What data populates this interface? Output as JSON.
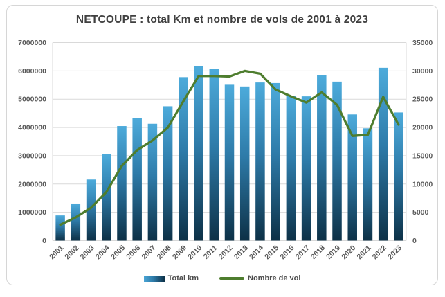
{
  "window": {
    "background": "#ffffff",
    "frame_border": "#d6d6d6"
  },
  "chart_data": {
    "type": "combo-bar-line",
    "title": "NETCOUPE : total Km et nombre de vols de 2001 à 2023",
    "categories": [
      "2001",
      "2002",
      "2003",
      "2004",
      "2005",
      "2006",
      "2007",
      "2008",
      "2009",
      "2010",
      "2011",
      "2012",
      "2013",
      "2014",
      "2015",
      "2016",
      "2017",
      "2018",
      "2019",
      "2020",
      "2021",
      "2022",
      "2023"
    ],
    "series": [
      {
        "name": "Total km",
        "type": "bar",
        "axis": "left",
        "values": [
          890000,
          1310000,
          2160000,
          3050000,
          4050000,
          4330000,
          4130000,
          4750000,
          5780000,
          6170000,
          6060000,
          5510000,
          5450000,
          5590000,
          5570000,
          5120000,
          5100000,
          5840000,
          5620000,
          4460000,
          3970000,
          6110000,
          4530000
        ]
      },
      {
        "name": "Nombre de vol",
        "type": "line",
        "axis": "right",
        "values": [
          2800,
          4100,
          5800,
          8600,
          13200,
          16000,
          17700,
          20000,
          24600,
          29100,
          29100,
          29000,
          30000,
          29500,
          26700,
          25500,
          24400,
          26200,
          24000,
          18500,
          18700,
          25400,
          20500
        ]
      }
    ],
    "left_axis": {
      "min": 0,
      "max": 7000000,
      "step": 1000000,
      "ticks": [
        "7000000",
        "6000000",
        "5000000",
        "4000000",
        "3000000",
        "2000000",
        "1000000",
        "0"
      ]
    },
    "right_axis": {
      "min": 0,
      "max": 35000,
      "step": 5000,
      "ticks": [
        "35000",
        "30000",
        "25000",
        "20000",
        "15000",
        "10000",
        "5000",
        "0"
      ]
    },
    "legend_position": "bottom",
    "grid": "horizontal",
    "colors": {
      "bar_top": "#4dabdb",
      "bar_mid": "#2e7ba9",
      "bar_bottom": "#0d3147",
      "line": "#4e7d2e",
      "grid": "#d9d9d9",
      "axis_text": "#595959",
      "title_text": "#404040"
    }
  }
}
